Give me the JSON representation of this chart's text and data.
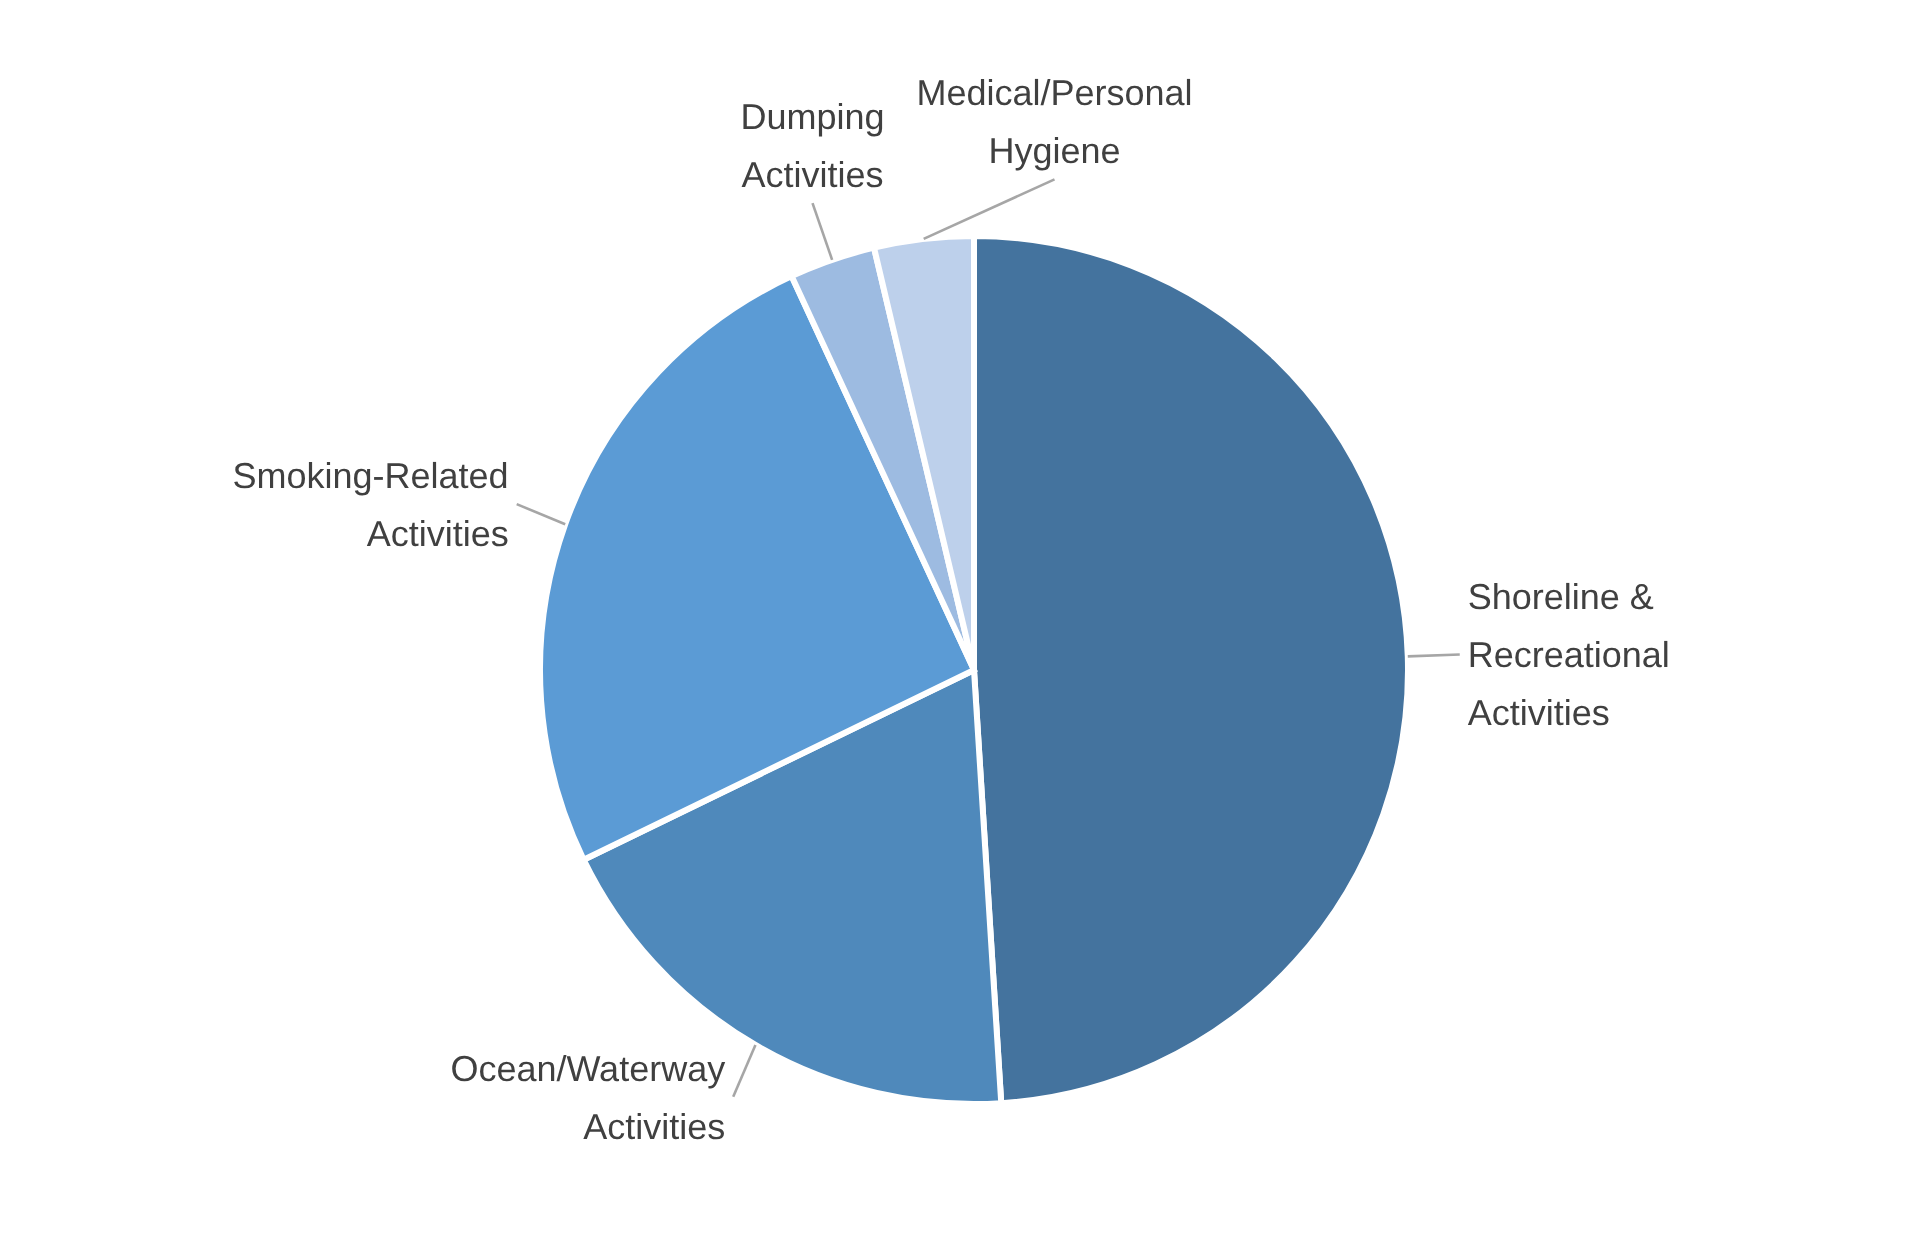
{
  "chart_data": {
    "type": "pie",
    "categories": [
      "Shoreline & Recreational Activities",
      "Ocean/Waterway Activities",
      "Smoking-Related Activities",
      "Dumping Activities",
      "Medical/Personal Hygiene"
    ],
    "values": [
      49,
      18.8,
      25.3,
      3.2,
      3.7
    ],
    "colors": [
      "#44739e",
      "#4f89bb",
      "#5b9bd5",
      "#9dbbe1",
      "#bdd0eb"
    ],
    "legend": false
  }
}
